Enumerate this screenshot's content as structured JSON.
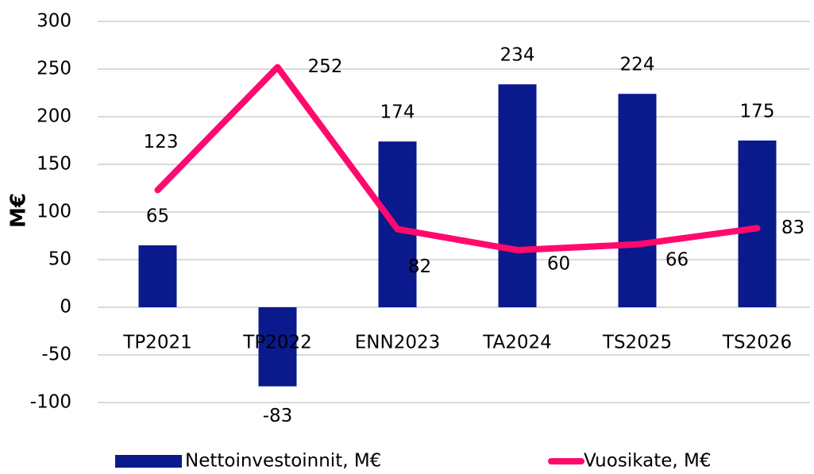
{
  "chart_data": {
    "type": "bar_line",
    "y_label": "M€",
    "categories": [
      "TP2021",
      "TP2022",
      "ENN2023",
      "TA2024",
      "TS2025",
      "TS2026"
    ],
    "series": [
      {
        "name": "Nettoinvestoinnit, M€",
        "type": "bar",
        "color": "#0a1a8c",
        "values": [
          65,
          -83,
          174,
          234,
          224,
          175
        ]
      },
      {
        "name": "Vuosikate, M€",
        "type": "line",
        "color": "#ff0a6c",
        "values": [
          123,
          252,
          82,
          60,
          66,
          83
        ]
      }
    ],
    "ylim": [
      -100,
      300
    ],
    "yticks": [
      -100,
      -50,
      0,
      50,
      100,
      150,
      200,
      250,
      300
    ],
    "grid": true
  }
}
